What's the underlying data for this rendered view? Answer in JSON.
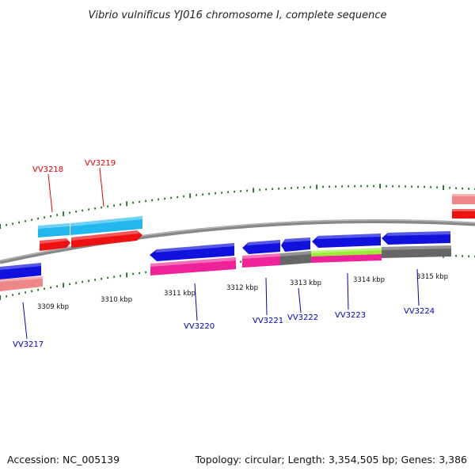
{
  "title": "Vibrio vulnificus YJ016 chromosome I, complete sequence",
  "footer": {
    "accession": "Accession: NC_005139",
    "topology": "Topology: circular; Length: 3,354,505 bp; Genes: 3,386"
  },
  "colors": {
    "red": "#ee1111",
    "light_red": "#ee8888",
    "cyan": "#22b8ee",
    "blue": "#1111dd",
    "magenta": "#ee2299",
    "gray": "#666666",
    "lime": "#99ee33",
    "tick_green": "#117711",
    "label_red": "#dd0000",
    "label_blue": "#0000bb"
  },
  "scale_labels": [
    "3309 kbp",
    "3310 kbp",
    "3311 kbp",
    "3312 kbp",
    "3313 kbp",
    "3314 kbp",
    "3315 kbp"
  ],
  "gene_labels": [
    {
      "name": "VV3217",
      "color": "label_blue"
    },
    {
      "name": "VV3218",
      "color": "label_red"
    },
    {
      "name": "VV3219",
      "color": "label_red"
    },
    {
      "name": "VV3220",
      "color": "label_blue"
    },
    {
      "name": "VV3221",
      "color": "label_blue"
    },
    {
      "name": "VV3222",
      "color": "label_blue"
    },
    {
      "name": "VV3223",
      "color": "label_blue"
    },
    {
      "name": "VV3224",
      "color": "label_blue"
    }
  ]
}
